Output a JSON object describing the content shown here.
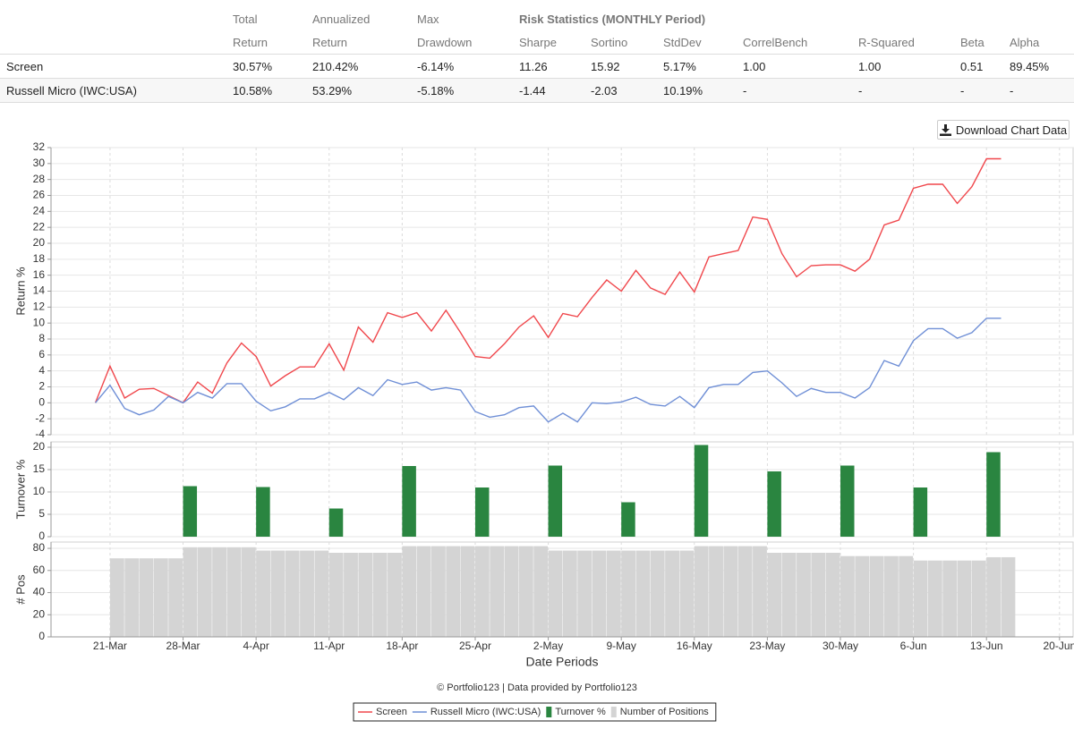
{
  "table": {
    "group_header": "Risk Statistics (MONTHLY Period)",
    "header_top": [
      "Total",
      "Annualized",
      "Max"
    ],
    "header": [
      "Return",
      "Return",
      "Drawdown",
      "Sharpe",
      "Sortino",
      "StdDev",
      "CorrelBench",
      "R-Squared",
      "Beta",
      "Alpha"
    ],
    "rows": [
      [
        "Screen",
        "30.57%",
        "210.42%",
        "-6.14%",
        "11.26",
        "15.92",
        "5.17%",
        "1.00",
        "1.00",
        "0.51",
        "89.45%"
      ],
      [
        "Russell Micro (IWC:USA)",
        "10.58%",
        "53.29%",
        "-5.18%",
        "-1.44",
        "-2.03",
        "10.19%",
        "-",
        "-",
        "-",
        "-"
      ]
    ]
  },
  "download_button": "Download Chart Data",
  "credit": "© Portfolio123 | Data provided by Portfolio123",
  "chart_data": [
    {
      "type": "line",
      "ylabel": "Return %",
      "xlim": [
        -4.04,
        65.93
      ],
      "ylim": [
        -4,
        32
      ],
      "yticks": [
        -4,
        -2,
        0,
        2,
        4,
        6,
        8,
        10,
        12,
        14,
        16,
        18,
        20,
        22,
        24,
        26,
        28,
        30,
        32
      ],
      "grid": true,
      "x": [
        -1,
        0,
        1,
        2,
        3,
        4,
        5,
        6,
        7,
        8,
        9,
        10,
        11,
        12,
        13,
        14,
        15,
        16,
        17,
        18,
        19,
        20,
        21,
        22,
        23,
        24,
        25,
        26,
        27,
        28,
        29,
        30,
        31,
        32,
        33,
        34,
        35,
        36,
        37,
        38,
        39,
        40,
        41,
        42,
        43,
        44,
        45,
        46,
        47,
        48,
        49,
        50,
        51,
        52,
        53,
        54,
        55,
        56,
        57,
        58,
        59,
        60,
        61
      ],
      "series": [
        {
          "name": "Screen",
          "color": "#f0474c",
          "values": [
            0,
            4.6,
            0.6,
            1.7,
            1.8,
            0.9,
            0.0,
            2.6,
            1.2,
            5.0,
            7.5,
            5.8,
            2.1,
            3.4,
            4.5,
            4.5,
            7.4,
            4.1,
            9.5,
            7.6,
            11.3,
            10.7,
            11.3,
            9.0,
            11.6,
            8.8,
            5.8,
            5.6,
            7.4,
            9.5,
            10.9,
            8.2,
            11.2,
            10.8,
            13.2,
            15.4,
            14.0,
            16.6,
            14.4,
            13.6,
            16.4,
            13.9,
            18.3,
            18.7,
            19.1,
            23.3,
            23.0,
            18.7,
            15.8,
            17.2,
            17.3,
            17.3,
            16.5,
            18.0,
            22.3,
            22.9,
            26.9,
            27.4,
            27.4,
            25.0,
            27.1,
            30.6,
            30.6
          ]
        },
        {
          "name": "Russell Micro (IWC:USA)",
          "color": "#6f8fd6",
          "values": [
            0,
            2.2,
            -0.7,
            -1.5,
            -0.9,
            0.8,
            0.0,
            1.3,
            0.6,
            2.4,
            2.4,
            0.2,
            -1.0,
            -0.5,
            0.5,
            0.5,
            1.3,
            0.4,
            1.9,
            0.9,
            2.9,
            2.3,
            2.6,
            1.6,
            1.9,
            1.6,
            -1.1,
            -1.8,
            -1.5,
            -0.6,
            -0.4,
            -2.4,
            -1.3,
            -2.4,
            0.0,
            -0.1,
            0.1,
            0.7,
            -0.2,
            -0.4,
            0.8,
            -0.6,
            1.9,
            2.3,
            2.3,
            3.8,
            4.0,
            2.5,
            0.8,
            1.8,
            1.3,
            1.3,
            0.6,
            1.9,
            5.3,
            4.6,
            7.8,
            9.3,
            9.3,
            8.1,
            8.8,
            10.6,
            10.6
          ]
        }
      ]
    },
    {
      "type": "bar",
      "ylabel": "Turnover %",
      "xlim": [
        -4.04,
        65.93
      ],
      "ylim": [
        0,
        21.2
      ],
      "yticks": [
        0,
        5,
        10,
        15,
        20
      ],
      "grid": true,
      "x": [
        5,
        10,
        15,
        20,
        25,
        30,
        35,
        40,
        45,
        50,
        55,
        60
      ],
      "series": [
        {
          "name": "Turnover %",
          "color": "#2a8540",
          "values": [
            11.3,
            11.1,
            6.3,
            15.8,
            11.0,
            15.9,
            7.7,
            20.5,
            14.6,
            15.9,
            11.0,
            18.9
          ]
        }
      ]
    },
    {
      "type": "bar",
      "ylabel": "# Pos",
      "xlabel": "Date Periods",
      "xlim": [
        -4.04,
        65.93
      ],
      "ylim": [
        0,
        85.7
      ],
      "yticks": [
        0,
        20,
        40,
        60,
        80
      ],
      "xticks": [
        {
          "value": 0,
          "label": "21-Mar"
        },
        {
          "value": 5,
          "label": "28-Mar"
        },
        {
          "value": 10,
          "label": "4-Apr"
        },
        {
          "value": 15,
          "label": "11-Apr"
        },
        {
          "value": 20,
          "label": "18-Apr"
        },
        {
          "value": 25,
          "label": "25-Apr"
        },
        {
          "value": 30,
          "label": "2-May"
        },
        {
          "value": 35,
          "label": "9-May"
        },
        {
          "value": 40,
          "label": "16-May"
        },
        {
          "value": 45,
          "label": "23-May"
        },
        {
          "value": 50,
          "label": "30-May"
        },
        {
          "value": 55,
          "label": "6-Jun"
        },
        {
          "value": 60,
          "label": "13-Jun"
        },
        {
          "value": 65,
          "label": "20-Jun"
        }
      ],
      "grid": true,
      "x": [
        0,
        1,
        2,
        3,
        4,
        5,
        6,
        7,
        8,
        9,
        10,
        11,
        12,
        13,
        14,
        15,
        16,
        17,
        18,
        19,
        20,
        21,
        22,
        23,
        24,
        25,
        26,
        27,
        28,
        29,
        30,
        31,
        32,
        33,
        34,
        35,
        36,
        37,
        38,
        39,
        40,
        41,
        42,
        43,
        44,
        45,
        46,
        47,
        48,
        49,
        50,
        51,
        52,
        53,
        54,
        55,
        56,
        57,
        58,
        59,
        60,
        61
      ],
      "series": [
        {
          "name": "Number of Positions",
          "color": "#d4d4d4",
          "values": [
            71,
            71,
            71,
            71,
            71,
            81,
            81,
            81,
            81,
            81,
            78,
            78,
            78,
            78,
            78,
            76,
            76,
            76,
            76,
            76,
            82,
            82,
            82,
            82,
            82,
            82,
            82,
            82,
            82,
            82,
            78,
            78,
            78,
            78,
            78,
            78,
            78,
            78,
            78,
            78,
            82,
            82,
            82,
            82,
            82,
            76,
            76,
            76,
            76,
            76,
            73,
            73,
            73,
            73,
            73,
            69,
            69,
            69,
            69,
            69,
            72,
            72
          ]
        }
      ]
    }
  ]
}
